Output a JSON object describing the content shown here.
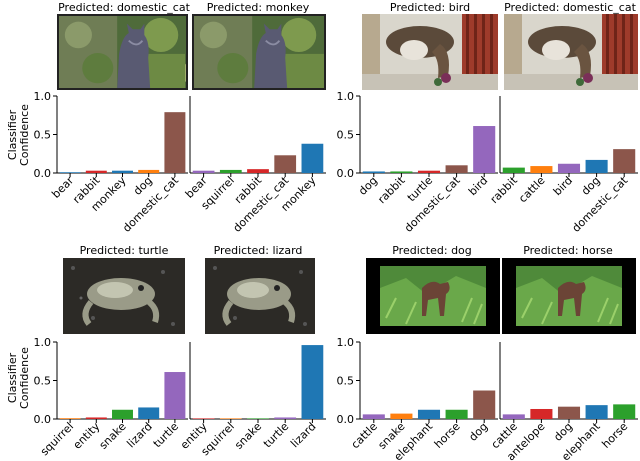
{
  "ylabel": "Classifier Confidence",
  "ylabel_lines": [
    "Classifier",
    "Confidence"
  ],
  "colors": {
    "blue": "#1f77b4",
    "orange": "#ff7f0e",
    "green": "#2ca02c",
    "red": "#d62728",
    "purple": "#9467bd",
    "brown": "#8c564b"
  },
  "chart_data": [
    {
      "type": "bar",
      "title": "Predicted: domestic_cat",
      "image_subject": "cat",
      "categories": [
        "bear",
        "rabbit",
        "monkey",
        "dog",
        "domestic_cat"
      ],
      "values": [
        0.01,
        0.03,
        0.03,
        0.04,
        0.79
      ],
      "bar_colors": [
        "blue",
        "red",
        "blue",
        "orange",
        "brown"
      ],
      "ylim": [
        0,
        1.0
      ],
      "yticks": [
        "0.0",
        "0.5",
        "1.0"
      ],
      "show_yaxis": true
    },
    {
      "type": "bar",
      "title": "Predicted: monkey",
      "image_subject": "cat",
      "categories": [
        "bear",
        "squirrel",
        "rabbit",
        "domestic_cat",
        "monkey"
      ],
      "values": [
        0.03,
        0.04,
        0.05,
        0.23,
        0.38
      ],
      "bar_colors": [
        "purple",
        "green",
        "red",
        "brown",
        "blue"
      ],
      "ylim": [
        0,
        1.0
      ],
      "yticks": [],
      "show_yaxis": false
    },
    {
      "type": "bar",
      "title": "Predicted: bird",
      "image_subject": "bird",
      "categories": [
        "dog",
        "rabbit",
        "turtle",
        "domestic_cat",
        "bird"
      ],
      "values": [
        0.02,
        0.02,
        0.03,
        0.1,
        0.61
      ],
      "bar_colors": [
        "blue",
        "green",
        "red",
        "brown",
        "purple"
      ],
      "ylim": [
        0,
        1.0
      ],
      "yticks": [
        "0.0",
        "0.5",
        "1.0"
      ],
      "show_yaxis": true
    },
    {
      "type": "bar",
      "title": "Predicted: domestic_cat",
      "image_subject": "bird",
      "categories": [
        "rabbit",
        "cattle",
        "bird",
        "dog",
        "domestic_cat"
      ],
      "values": [
        0.07,
        0.09,
        0.12,
        0.17,
        0.31
      ],
      "bar_colors": [
        "green",
        "orange",
        "purple",
        "blue",
        "brown"
      ],
      "ylim": [
        0,
        1.0
      ],
      "yticks": [],
      "show_yaxis": false
    },
    {
      "type": "bar",
      "title": "Predicted: turtle",
      "image_subject": "frog",
      "categories": [
        "squirrel",
        "entity",
        "snake",
        "lizard",
        "turtle"
      ],
      "values": [
        0.01,
        0.02,
        0.12,
        0.15,
        0.61
      ],
      "bar_colors": [
        "orange",
        "red",
        "green",
        "blue",
        "purple"
      ],
      "ylim": [
        0,
        1.0
      ],
      "yticks": [
        "0.0",
        "0.5",
        "1.0"
      ],
      "show_yaxis": true
    },
    {
      "type": "bar",
      "title": "Predicted: lizard",
      "image_subject": "frog",
      "categories": [
        "entity",
        "squirrel",
        "snake",
        "turtle",
        "lizard"
      ],
      "values": [
        0.0,
        0.0,
        0.0,
        0.02,
        0.96
      ],
      "bar_colors": [
        "red",
        "orange",
        "green",
        "purple",
        "blue"
      ],
      "ylim": [
        0,
        1.0
      ],
      "yticks": [],
      "show_yaxis": false
    },
    {
      "type": "bar",
      "title": "Predicted: dog",
      "image_subject": "dog",
      "categories": [
        "cattle",
        "snake",
        "elephant",
        "horse",
        "dog"
      ],
      "values": [
        0.06,
        0.07,
        0.12,
        0.12,
        0.37
      ],
      "bar_colors": [
        "purple",
        "orange",
        "blue",
        "green",
        "brown"
      ],
      "ylim": [
        0,
        1.0
      ],
      "yticks": [
        "0.0",
        "0.5",
        "1.0"
      ],
      "show_yaxis": true
    },
    {
      "type": "bar",
      "title": "Predicted: horse",
      "image_subject": "dog",
      "categories": [
        "cattle",
        "antelope",
        "dog",
        "elephant",
        "horse"
      ],
      "values": [
        0.06,
        0.13,
        0.16,
        0.18,
        0.19
      ],
      "bar_colors": [
        "purple",
        "red",
        "brown",
        "blue",
        "green"
      ],
      "ylim": [
        0,
        1.0
      ],
      "yticks": [],
      "show_yaxis": false
    }
  ]
}
